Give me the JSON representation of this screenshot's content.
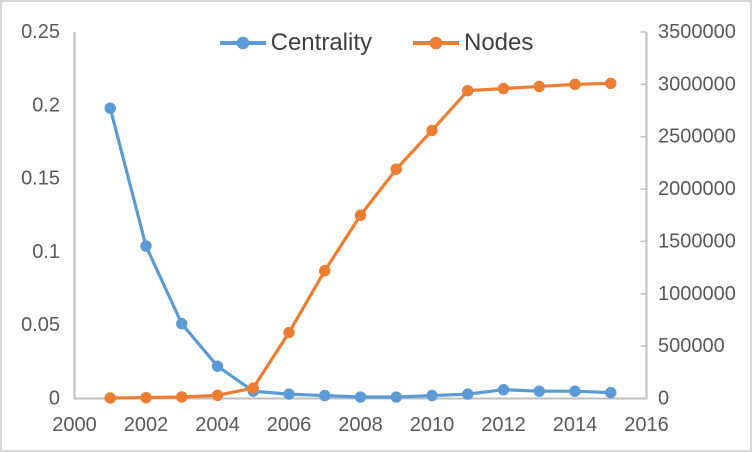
{
  "chart_data": {
    "type": "line",
    "title": "",
    "x": [
      2001,
      2002,
      2003,
      2004,
      2005,
      2006,
      2007,
      2008,
      2009,
      2010,
      2011,
      2012,
      2013,
      2014,
      2015
    ],
    "series": [
      {
        "name": "Centrality",
        "axis": "left",
        "color": "#5B9BD5",
        "values": [
          0.198,
          0.104,
          0.051,
          0.022,
          0.005,
          0.003,
          0.002,
          0.001,
          0.001,
          0.002,
          0.003,
          0.006,
          0.005,
          0.005,
          0.004
        ]
      },
      {
        "name": "Nodes",
        "axis": "right",
        "color": "#ED7D31",
        "values": [
          5000,
          8000,
          15000,
          30000,
          100000,
          630000,
          1220000,
          1750000,
          2190000,
          2560000,
          2940000,
          2960000,
          2980000,
          3000000,
          3010000
        ]
      }
    ],
    "xlim": [
      2000,
      2016
    ],
    "x_tick_labels": [
      "2000",
      "2002",
      "2004",
      "2006",
      "2008",
      "2010",
      "2012",
      "2014",
      "2016"
    ],
    "left_axis": {
      "lim": [
        0,
        0.25
      ],
      "tick_labels": [
        "0.25",
        "0.2",
        "0.15",
        "0.1",
        "0.05",
        "0"
      ]
    },
    "right_axis": {
      "lim": [
        0,
        3500000
      ],
      "tick_labels": [
        "3500000",
        "3000000",
        "2500000",
        "2000000",
        "1500000",
        "1000000",
        "500000",
        "0"
      ]
    },
    "legend": {
      "position": "top",
      "items": [
        "Centrality",
        "Nodes"
      ]
    },
    "grid": false
  },
  "colors": {
    "axis_line": "#BFBFBF",
    "tick_text": "#595959",
    "legend_text": "#404040",
    "border": "#D6D6D6",
    "background": "#FFFFFF"
  }
}
